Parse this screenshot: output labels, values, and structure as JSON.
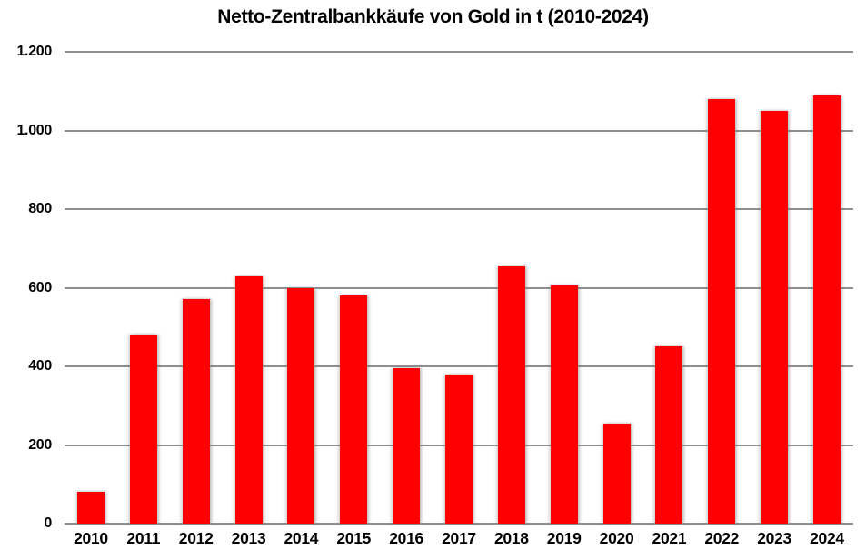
{
  "chart_data": {
    "type": "bar",
    "title": "Netto-Zentralbankkäufe von Gold in t (2010-2024)",
    "categories": [
      "2010",
      "2011",
      "2012",
      "2013",
      "2014",
      "2015",
      "2016",
      "2017",
      "2018",
      "2019",
      "2020",
      "2021",
      "2022",
      "2023",
      "2024"
    ],
    "values": [
      80,
      480,
      570,
      630,
      600,
      580,
      395,
      380,
      655,
      605,
      255,
      450,
      1080,
      1050,
      1090
    ],
    "xlabel": "",
    "ylabel": "",
    "ylim": [
      0,
      1200
    ],
    "ytick_values": [
      0,
      200,
      400,
      600,
      800,
      1000,
      1200
    ],
    "ytick_labels": [
      "0",
      "200",
      "400",
      "600",
      "800",
      "1.000",
      "1.200"
    ],
    "grid": true,
    "legend": "none",
    "bar_color": "#ff0000",
    "gridline_color": "#8f8f8f",
    "background_color": "#ffffff",
    "text_color": "#000000"
  }
}
